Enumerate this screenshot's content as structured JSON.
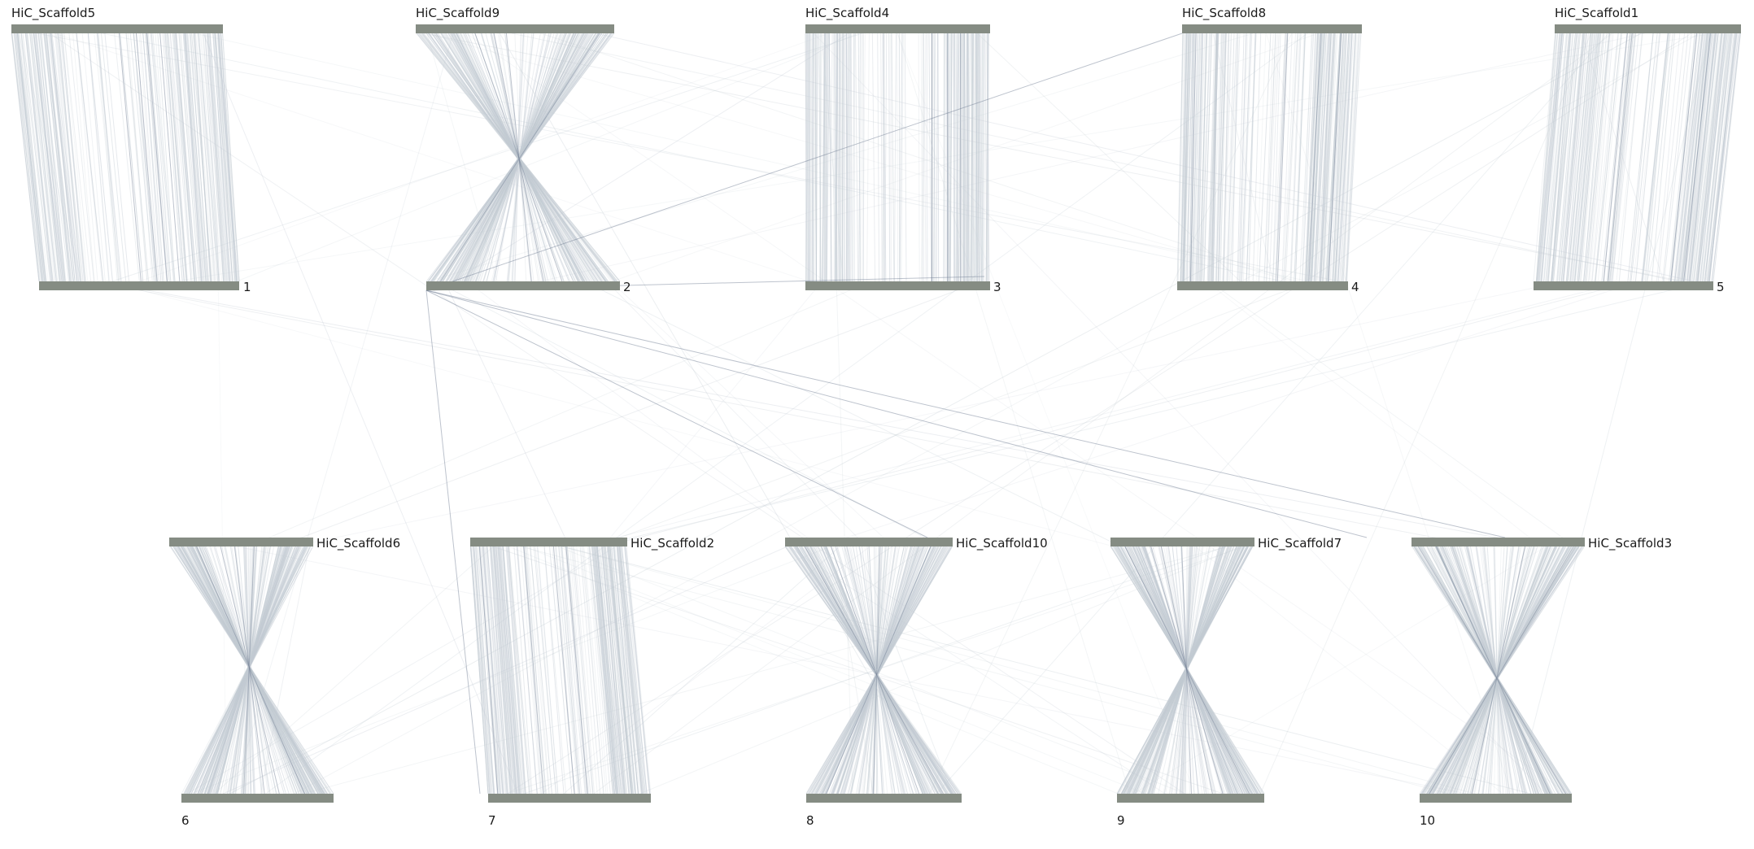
{
  "pairs": [
    {
      "id": "p1",
      "reference": "HiC_Scaffold5",
      "query": "1",
      "orientation": "forward"
    },
    {
      "id": "p2",
      "reference": "HiC_Scaffold9",
      "query": "2",
      "orientation": "inverted"
    },
    {
      "id": "p3",
      "reference": "HiC_Scaffold4",
      "query": "3",
      "orientation": "forward"
    },
    {
      "id": "p4",
      "reference": "HiC_Scaffold8",
      "query": "4",
      "orientation": "forward"
    },
    {
      "id": "p5",
      "reference": "HiC_Scaffold1",
      "query": "5",
      "orientation": "forward"
    },
    {
      "id": "p6",
      "reference": "HiC_Scaffold6",
      "query": "6",
      "orientation": "inverted"
    },
    {
      "id": "p7",
      "reference": "HiC_Scaffold2",
      "query": "7",
      "orientation": "forward"
    },
    {
      "id": "p8",
      "reference": "HiC_Scaffold10",
      "query": "8",
      "orientation": "inverted"
    },
    {
      "id": "p9",
      "reference": "HiC_Scaffold7",
      "query": "9",
      "orientation": "inverted"
    },
    {
      "id": "p10",
      "reference": "HiC_Scaffold3",
      "query": "10",
      "orientation": "inverted"
    }
  ],
  "colors": {
    "chromosome_bar": "#858c83",
    "link_light": "#c3cbd3",
    "link_dark": "#6d7a90",
    "background": "#ffffff"
  }
}
